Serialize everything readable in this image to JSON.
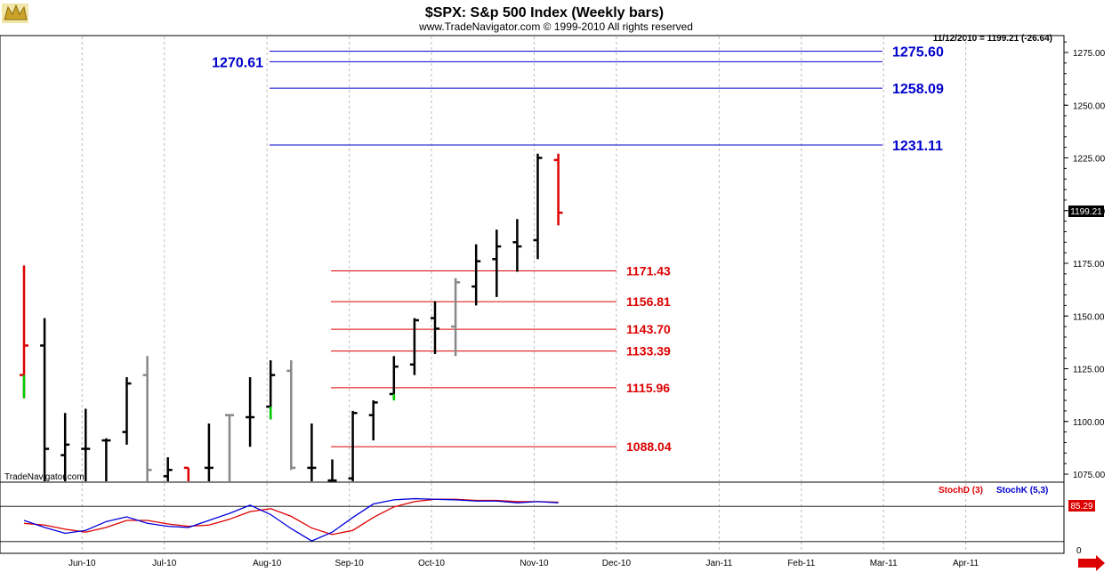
{
  "header": {
    "title": "$SPX:  S&p 500 Index  (Weekly bars)",
    "subtitle": "www.TradeNavigator.com © 1999-2010 All rights reserved",
    "readout": "11/12/2010 = 1199.21 (-26.64)"
  },
  "watermark": "TradeNavigator.com",
  "price_tag": "1199.21",
  "osc_tag": "85.29",
  "osc_zero": "0",
  "osc_legend": {
    "d": "StochD (3)",
    "k": "StochK (5,3)"
  },
  "colors": {
    "blue": "#0000cc",
    "red": "#dd0000",
    "black": "#000000",
    "gray": "#888888",
    "green": "#00cc00",
    "grid": "#bbbbbb",
    "osc_blue": "#0000dd",
    "osc_red": "#dd0000"
  },
  "chart_data": {
    "type": "bar",
    "ylim": [
      1070,
      1285
    ],
    "y_ticks": [
      1075,
      1100,
      1125,
      1150,
      1175,
      1200,
      1225,
      1250,
      1275
    ],
    "y_tick_labels": [
      "1075.00",
      "1100.00",
      "1125.00",
      "1150.00",
      "1175.00",
      "1200.00",
      "1225.00",
      "1250.00",
      "1275.00"
    ],
    "x_labels": [
      "Jun-10",
      "Jul-10",
      "Aug-10",
      "Sep-10",
      "Oct-10",
      "Nov-10",
      "Dec-10",
      "Jan-11",
      "Feb-11",
      "Mar-11",
      "Apr-11"
    ],
    "x_label_weeks": [
      3,
      7,
      12,
      16,
      20,
      25,
      29,
      34,
      38,
      42,
      46
    ],
    "bars": [
      {
        "w": 0,
        "high": 1174,
        "low": 1111,
        "open": 1122,
        "close": 1136,
        "color": "red"
      },
      {
        "w": 1,
        "high": 1149,
        "low": 1068,
        "open": 1136,
        "close": 1087,
        "color": "black"
      },
      {
        "w": 2,
        "high": 1104,
        "low": 1068,
        "open": 1084,
        "close": 1089,
        "color": "black"
      },
      {
        "w": 3,
        "high": 1106,
        "low": 1068,
        "open": 1087,
        "close": 1087,
        "color": "black"
      },
      {
        "w": 4,
        "high": 1092,
        "low": 1068,
        "open": 1091,
        "close": 1091,
        "color": "black"
      },
      {
        "w": 5,
        "high": 1121,
        "low": 1089,
        "open": 1095,
        "close": 1118,
        "color": "black"
      },
      {
        "w": 6,
        "high": 1131,
        "low": 1068,
        "open": 1122,
        "close": 1077,
        "color": "gray"
      },
      {
        "w": 7,
        "high": 1083,
        "low": 1068,
        "open": 1074,
        "close": 1077,
        "color": "black"
      },
      {
        "w": 8,
        "high": 1078,
        "low": 1068,
        "open": 1078,
        "close": 1070,
        "color": "red"
      },
      {
        "w": 9,
        "high": 1099,
        "low": 1068,
        "open": 1078,
        "close": 1078,
        "color": "black"
      },
      {
        "w": 10,
        "high": 1103,
        "low": 1068,
        "open": 1103,
        "close": 1103,
        "color": "gray"
      },
      {
        "w": 11,
        "high": 1121,
        "low": 1088,
        "open": 1102,
        "close": 1102,
        "color": "black"
      },
      {
        "w": 12,
        "high": 1129,
        "low": 1101,
        "open": 1107,
        "close": 1122,
        "color": "black"
      },
      {
        "w": 13,
        "high": 1129,
        "low": 1077,
        "open": 1124,
        "close": 1078,
        "color": "gray"
      },
      {
        "w": 14,
        "high": 1099,
        "low": 1068,
        "open": 1078,
        "close": 1078,
        "color": "black"
      },
      {
        "w": 15,
        "high": 1082,
        "low": 1068,
        "open": 1072,
        "close": 1072,
        "color": "black"
      },
      {
        "w": 16,
        "high": 1105,
        "low": 1068,
        "open": 1073,
        "close": 1104,
        "color": "black"
      },
      {
        "w": 17,
        "high": 1110,
        "low": 1091,
        "open": 1103,
        "close": 1109,
        "color": "black"
      },
      {
        "w": 18,
        "high": 1131,
        "low": 1110,
        "open": 1113,
        "close": 1126,
        "color": "black"
      },
      {
        "w": 19,
        "high": 1149,
        "low": 1122,
        "open": 1127,
        "close": 1148,
        "color": "black"
      },
      {
        "w": 20,
        "high": 1157,
        "low": 1132,
        "open": 1149,
        "close": 1144,
        "color": "black"
      },
      {
        "w": 21,
        "high": 1168,
        "low": 1131,
        "open": 1145,
        "close": 1166,
        "color": "gray"
      },
      {
        "w": 22,
        "high": 1184,
        "low": 1155,
        "open": 1164,
        "close": 1176,
        "color": "black"
      },
      {
        "w": 23,
        "high": 1191,
        "low": 1159,
        "open": 1177,
        "close": 1183,
        "color": "black"
      },
      {
        "w": 24,
        "high": 1196,
        "low": 1171,
        "open": 1185,
        "close": 1183,
        "color": "black"
      },
      {
        "w": 25,
        "high": 1227,
        "low": 1177,
        "open": 1186,
        "close": 1225,
        "color": "black"
      },
      {
        "w": 26,
        "high": 1227,
        "low": 1193,
        "open": 1224,
        "close": 1199,
        "color": "red"
      }
    ],
    "blue_levels": [
      1275.6,
      1270.61,
      1258.09,
      1231.11
    ],
    "blue_level_labels": [
      "1275.60",
      "1270.61",
      "1258.09",
      "1231.11"
    ],
    "red_levels": [
      1171.43,
      1156.81,
      1143.7,
      1133.39,
      1115.96,
      1088.04
    ],
    "red_level_labels": [
      "1171.43",
      "1156.81",
      "1143.70",
      "1133.39",
      "1115.96",
      "1088.04"
    ],
    "osc_reference_levels": [
      80,
      20
    ],
    "stoch_k": [
      50,
      38,
      28,
      33,
      48,
      56,
      45,
      40,
      38,
      50,
      62,
      76,
      60,
      36,
      15,
      30,
      55,
      78,
      85,
      87,
      86,
      85,
      83,
      83,
      80,
      82,
      80
    ],
    "stoch_d": [
      45,
      42,
      35,
      30,
      38,
      50,
      50,
      44,
      40,
      42,
      52,
      65,
      70,
      57,
      37,
      26,
      33,
      55,
      73,
      82,
      86,
      86,
      84,
      84,
      82,
      82,
      81
    ]
  }
}
